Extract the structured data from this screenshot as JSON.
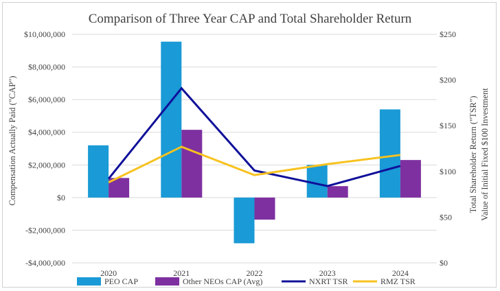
{
  "chart_data": {
    "type": "bar",
    "title": "Comparison of Three Year CAP and Total Shareholder Return",
    "categories": [
      "2020",
      "2021",
      "2022",
      "2023",
      "2024"
    ],
    "ylabel": "Compensation Actually Paid (\"CAP\")",
    "y2label_line1": "Total Shareholder Return (\"TSR\")",
    "y2label_line2": "Value of Initial Fixed $100 Investment",
    "ylim": [
      -4000000,
      10000000
    ],
    "y2lim": [
      0,
      250
    ],
    "y_ticks": [
      10000000,
      8000000,
      6000000,
      4000000,
      2000000,
      0,
      -2000000,
      -4000000
    ],
    "y_tick_labels": [
      "$10,000,000",
      "$8,000,000",
      "$6,000,000",
      "$4,000,000",
      "$2,000,000",
      "$0",
      "-$2,000,000",
      "-$4,000,000"
    ],
    "y2_ticks": [
      250,
      200,
      150,
      100,
      50,
      0
    ],
    "y2_tick_labels": [
      "$250",
      "$200",
      "$150",
      "$100",
      "$50",
      "$0"
    ],
    "grid": true,
    "legend_position": "bottom",
    "series": [
      {
        "name": "PEO CAP",
        "kind": "bar",
        "axis": "left",
        "color": "#1a9ad6",
        "values": [
          3200000,
          9550000,
          -2800000,
          2000000,
          5400000
        ]
      },
      {
        "name": "Other NEOs CAP (Avg)",
        "kind": "bar",
        "axis": "left",
        "color": "#7e30a0",
        "values": [
          1200000,
          4150000,
          -1350000,
          700000,
          2300000
        ]
      },
      {
        "name": "NXRT TSR",
        "kind": "line",
        "axis": "right",
        "color": "#10109a",
        "values": [
          92,
          191,
          101,
          84,
          106
        ]
      },
      {
        "name": "RMZ TSR",
        "kind": "line",
        "axis": "right",
        "color": "#f7c21e",
        "values": [
          88,
          127,
          96,
          108,
          118
        ]
      }
    ]
  }
}
